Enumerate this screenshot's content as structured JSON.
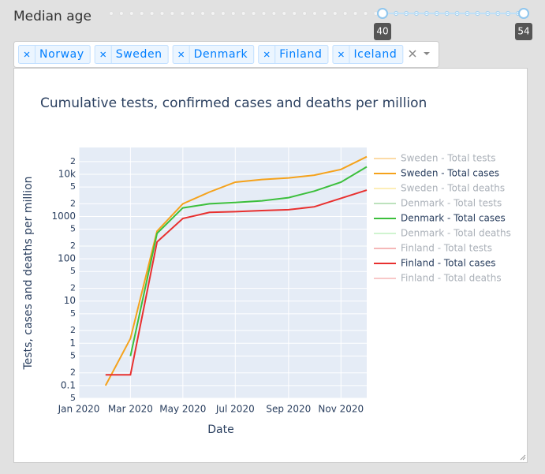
{
  "slider": {
    "label": "Median age",
    "values": [
      40,
      54
    ]
  },
  "dropdown": {
    "selected": [
      "Norway",
      "Sweden",
      "Denmark",
      "Finland",
      "Iceland"
    ]
  },
  "chart_data": {
    "type": "line",
    "title": "Cumulative tests, confirmed cases and deaths per million",
    "x_label": "Date",
    "y_label": "Tests, cases and deaths per million",
    "log_y": true,
    "grid": true,
    "legend": "right",
    "x": [
      "2020-02",
      "2020-03",
      "2020-04",
      "2020-05",
      "2020-06",
      "2020-07",
      "2020-08",
      "2020-09",
      "2020-10",
      "2020-11",
      "2020-12"
    ],
    "xlim": [
      "2020-01",
      "2020-12"
    ],
    "xticks": [
      {
        "value": "2020-01",
        "label": "Jan 2020"
      },
      {
        "value": "2020-03",
        "label": "Mar 2020"
      },
      {
        "value": "2020-05",
        "label": "May 2020"
      },
      {
        "value": "2020-07",
        "label": "Jul 2020"
      },
      {
        "value": "2020-09",
        "label": "Sep 2020"
      },
      {
        "value": "2020-11",
        "label": "Nov 2020"
      }
    ],
    "ylim": [
      0.05,
      43000
    ],
    "yticks": [
      {
        "value": 0.05,
        "label": "5"
      },
      0.1,
      {
        "value": 0.2,
        "label": "2"
      },
      {
        "value": 0.5,
        "label": "5"
      },
      1,
      {
        "value": 2,
        "label": "2"
      },
      {
        "value": 5,
        "label": "5"
      },
      10,
      {
        "value": 20,
        "label": "2"
      },
      {
        "value": 50,
        "label": "5"
      },
      100,
      {
        "value": 200,
        "label": "2"
      },
      {
        "value": 500,
        "label": "5"
      },
      1000,
      {
        "value": 2000,
        "label": "2"
      },
      {
        "value": 5000,
        "label": "5"
      },
      {
        "value": 10000,
        "label": "10k"
      },
      {
        "value": 20000,
        "label": "2"
      }
    ],
    "series": [
      {
        "name": "Sweden - Total tests",
        "color": "#fbc46e",
        "visible": false
      },
      {
        "name": "Sweden - Total cases",
        "color": "#f5a21b",
        "visible": true,
        "values": [
          0.1,
          1.3,
          450,
          2000,
          3800,
          6500,
          7500,
          8200,
          9500,
          13000,
          26000
        ]
      },
      {
        "name": "Sweden - Total deaths",
        "color": "#fde48a",
        "visible": false
      },
      {
        "name": "Denmark - Total tests",
        "color": "#92cf92",
        "visible": false
      },
      {
        "name": "Denmark - Total cases",
        "color": "#3cbf3c",
        "visible": true,
        "values": [
          null,
          0.5,
          400,
          1600,
          2000,
          2150,
          2350,
          2800,
          4000,
          6500,
          15000
        ]
      },
      {
        "name": "Denmark - Total deaths",
        "color": "#b2eeb2",
        "visible": false
      },
      {
        "name": "Finland - Total tests",
        "color": "#f08a8a",
        "visible": false
      },
      {
        "name": "Finland - Total cases",
        "color": "#e8302f",
        "visible": true,
        "values": [
          0.18,
          0.18,
          250,
          900,
          1250,
          1300,
          1380,
          1450,
          1700,
          2700,
          4200
        ]
      },
      {
        "name": "Finland - Total deaths",
        "color": "#f4a4a4",
        "visible": false
      }
    ]
  }
}
